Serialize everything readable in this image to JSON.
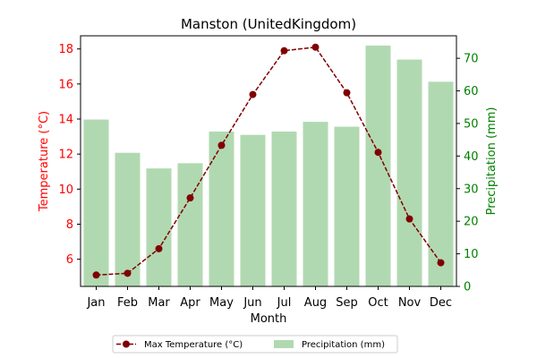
{
  "chart_data": {
    "type": "bar",
    "title": "Manston (UnitedKingdom)",
    "xlabel": "Month",
    "ylabel_left": "Temperature (°C)",
    "ylabel_right": "Precipitation (mm)",
    "categories": [
      "Jan",
      "Feb",
      "Mar",
      "Apr",
      "May",
      "Jun",
      "Jul",
      "Aug",
      "Sep",
      "Oct",
      "Nov",
      "Dec"
    ],
    "left_axis": {
      "min": 4.45,
      "max": 18.75,
      "ticks": [
        6,
        8,
        10,
        12,
        14,
        16,
        18
      ]
    },
    "right_axis": {
      "min": 0,
      "max": 76.9,
      "ticks": [
        0,
        10,
        20,
        30,
        40,
        50,
        60,
        70
      ]
    },
    "series": [
      {
        "name": "Max Temperature (°C)",
        "type": "line",
        "axis": "left",
        "color": "#800000",
        "values": [
          5.1,
          5.2,
          6.6,
          9.5,
          12.5,
          15.4,
          17.9,
          18.1,
          15.5,
          12.1,
          8.3,
          5.8
        ]
      },
      {
        "name": "Precipitation (mm)",
        "type": "bar",
        "axis": "right",
        "color": "#b1d9b1",
        "values": [
          51.2,
          41.0,
          36.2,
          37.8,
          47.5,
          46.5,
          47.5,
          50.5,
          49.0,
          73.9,
          69.6,
          62.8
        ]
      }
    ],
    "left_axis_color": "#ff0000",
    "right_axis_color": "#008000",
    "grid": false,
    "legend_position": "bottom-center"
  }
}
